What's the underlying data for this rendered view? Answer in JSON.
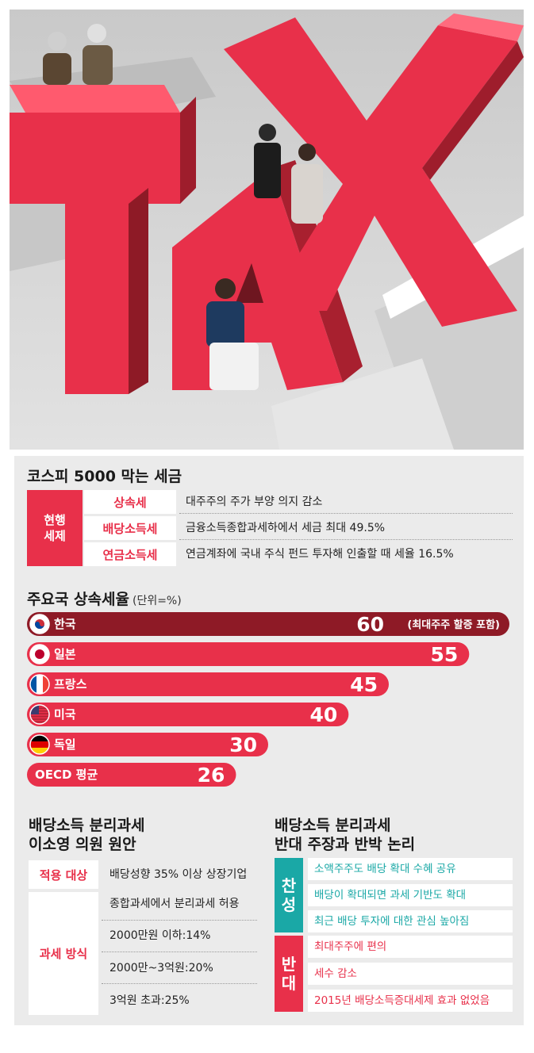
{
  "illustration": {
    "word": "TAX"
  },
  "section1": {
    "title": "코스피 5000 막는 세금",
    "category": "현행\n세제",
    "rows": [
      {
        "name": "상속세",
        "desc": "대주주의 주가 부양 의지 감소"
      },
      {
        "name": "배당소득세",
        "desc": "금융소득종합과세하에서 세금 최대 49.5%"
      },
      {
        "name": "연금소득세",
        "desc": "연금계좌에 국내 주식 펀드 투자해 인출할 때 세율 16.5%"
      }
    ]
  },
  "section2": {
    "title": "주요국 상속세율",
    "unit": "(단위=%)"
  },
  "chart_data": {
    "type": "bar",
    "orientation": "horizontal",
    "title": "주요국 상속세율",
    "unit": "(단위=%)",
    "categories": [
      "한국",
      "일본",
      "프랑스",
      "미국",
      "독일",
      "OECD 평균"
    ],
    "values": [
      60,
      55,
      45,
      40,
      30,
      26
    ],
    "value_labels": [
      "60",
      "55",
      "45",
      "40",
      "30",
      "26"
    ],
    "annotations": [
      {
        "category": "한국",
        "text": "(최대주주 할증 포함)"
      }
    ],
    "flags": [
      "korea-flag-icon",
      "japan-flag-icon",
      "france-flag-icon",
      "usa-flag-icon",
      "germany-flag-icon",
      ""
    ],
    "colors": {
      "highlight": "#8e1a26",
      "bar": "#e8304a"
    }
  },
  "section3": {
    "title_line1": "배당소득 분리과세",
    "title_line2": "이소영 의원 원안",
    "apply_label": "적용 대상",
    "apply_value": "배당성향 35% 이상 상장기업",
    "tax_label": "과세 방식",
    "tax_items": [
      "종합과세에서 분리과세 허용",
      "2000만원 이하:14%",
      "2000만~3억원:20%",
      "3억원 초과:25%"
    ]
  },
  "section4": {
    "title_line1": "배당소득 분리과세",
    "title_line2": "반대 주장과 반박 논리",
    "pro_label": "찬성",
    "pro_items": [
      "소액주주도 배당 확대 수혜 공유",
      "배당이 확대되면 과세 기반도 확대",
      "최근 배당 투자에 대한 관심 높아짐"
    ],
    "con_label": "반대",
    "con_items": [
      "최대주주에 편의",
      "세수 감소",
      "2015년 배당소득증대세제 효과 없었음"
    ]
  },
  "colors": {
    "red": "#e8304a",
    "dark_red": "#8e1a26",
    "teal": "#1aa8a6",
    "panel": "#ebebeb"
  }
}
